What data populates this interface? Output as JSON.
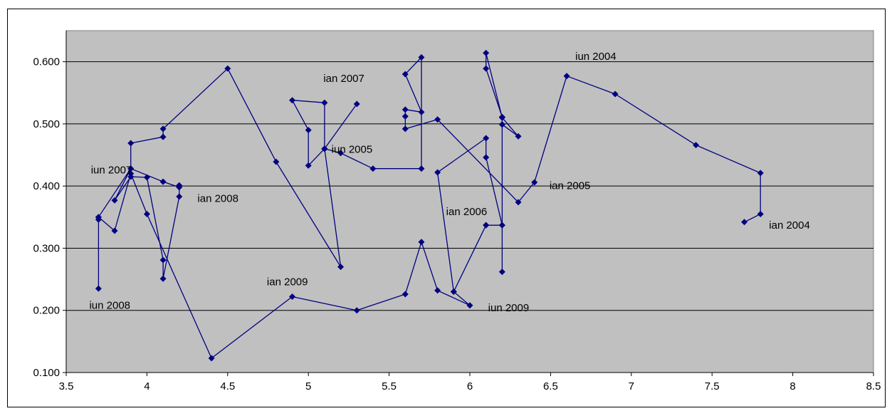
{
  "chart_data": {
    "type": "scatter",
    "mode": "lines+markers",
    "title": "",
    "xlabel": "",
    "ylabel": "",
    "xlim": [
      3.5,
      8.5
    ],
    "ylim": [
      0.1,
      0.65
    ],
    "x_ticks": [
      3.5,
      4,
      4.5,
      5,
      5.5,
      6,
      6.5,
      7,
      7.5,
      8,
      8.5
    ],
    "x_tick_labels": [
      "3.5",
      "4",
      "4.5",
      "5",
      "5.5",
      "6",
      "6.5",
      "7",
      "7.5",
      "8",
      "8.5"
    ],
    "y_ticks": [
      0.1,
      0.2,
      0.3,
      0.4,
      0.5,
      0.6
    ],
    "y_tick_labels": [
      "0.100",
      "0.200",
      "0.300",
      "0.400",
      "0.500",
      "0.600"
    ],
    "grid": "horizontal",
    "legend": "none",
    "colors": {
      "plot_bg": "#c0c0c0",
      "line": "#000080",
      "grid": "#000000"
    },
    "series": [
      {
        "points": [
          [
            7.7,
            0.342
          ],
          [
            7.8,
            0.355
          ],
          [
            7.8,
            0.421
          ],
          [
            7.4,
            0.466
          ],
          [
            6.9,
            0.548
          ],
          [
            6.6,
            0.577
          ],
          [
            6.4,
            0.406
          ],
          [
            6.3,
            0.374
          ],
          [
            5.8,
            0.507
          ],
          [
            5.6,
            0.492
          ],
          [
            5.6,
            0.512
          ],
          [
            5.6,
            0.523
          ],
          [
            5.7,
            0.519
          ],
          [
            5.6,
            0.58
          ],
          [
            5.7,
            0.607
          ],
          [
            5.7,
            0.428
          ],
          [
            5.4,
            0.428
          ],
          [
            5.2,
            0.453
          ],
          [
            5.1,
            0.46
          ],
          [
            5.3,
            0.532
          ],
          [
            5.1,
            0.46
          ],
          [
            5.0,
            0.433
          ],
          [
            5.0,
            0.49
          ],
          [
            4.9,
            0.538
          ],
          [
            5.1,
            0.534
          ],
          [
            5.1,
            0.46
          ],
          [
            5.2,
            0.27
          ],
          [
            4.8,
            0.439
          ],
          [
            4.5,
            0.589
          ],
          [
            4.1,
            0.492
          ],
          [
            4.1,
            0.479
          ],
          [
            3.9,
            0.469
          ],
          [
            3.9,
            0.428
          ],
          [
            3.8,
            0.377
          ],
          [
            3.9,
            0.415
          ],
          [
            4.0,
            0.414
          ],
          [
            4.1,
            0.281
          ],
          [
            4.1,
            0.251
          ],
          [
            4.2,
            0.383
          ],
          [
            4.2,
            0.401
          ],
          [
            4.2,
            0.398
          ],
          [
            4.1,
            0.407
          ],
          [
            3.9,
            0.428
          ],
          [
            3.7,
            0.35
          ],
          [
            3.7,
            0.346
          ],
          [
            3.7,
            0.235
          ],
          [
            3.7,
            0.35
          ],
          [
            3.8,
            0.328
          ],
          [
            3.9,
            0.42
          ],
          [
            4.0,
            0.355
          ],
          [
            4.4,
            0.123
          ],
          [
            4.9,
            0.222
          ],
          [
            5.3,
            0.2
          ],
          [
            5.6,
            0.226
          ],
          [
            5.7,
            0.31
          ],
          [
            5.8,
            0.232
          ],
          [
            6.0,
            0.208
          ],
          [
            5.9,
            0.23
          ],
          [
            5.8,
            0.422
          ],
          [
            6.1,
            0.477
          ],
          [
            6.1,
            0.446
          ],
          [
            6.2,
            0.337
          ],
          [
            6.1,
            0.337
          ],
          [
            5.9,
            0.23
          ],
          [
            6.1,
            0.337
          ],
          [
            6.2,
            0.337
          ],
          [
            6.2,
            0.499
          ],
          [
            6.2,
            0.262
          ],
          [
            6.2,
            0.511
          ],
          [
            6.1,
            0.589
          ],
          [
            6.1,
            0.614
          ],
          [
            6.2,
            0.51
          ],
          [
            6.3,
            0.48
          ],
          [
            6.2,
            0.499
          ]
        ]
      }
    ],
    "annotations": [
      {
        "text": "iun 2004",
        "x": 6.78,
        "y": 0.609
      },
      {
        "text": "ian 2007",
        "x": 5.22,
        "y": 0.573
      },
      {
        "text": "iun 2005",
        "x": 5.27,
        "y": 0.459
      },
      {
        "text": "iun 2007",
        "x": 3.78,
        "y": 0.426
      },
      {
        "text": "ian 2005",
        "x": 6.62,
        "y": 0.401
      },
      {
        "text": "ian 2008",
        "x": 4.44,
        "y": 0.38
      },
      {
        "text": "ian 2006",
        "x": 5.98,
        "y": 0.359
      },
      {
        "text": "ian 2004",
        "x": 7.98,
        "y": 0.337
      },
      {
        "text": "ian 2009",
        "x": 4.87,
        "y": 0.246
      },
      {
        "text": "iun 2009",
        "x": 6.24,
        "y": 0.204
      },
      {
        "text": "iun 2008",
        "x": 3.77,
        "y": 0.208
      }
    ]
  }
}
